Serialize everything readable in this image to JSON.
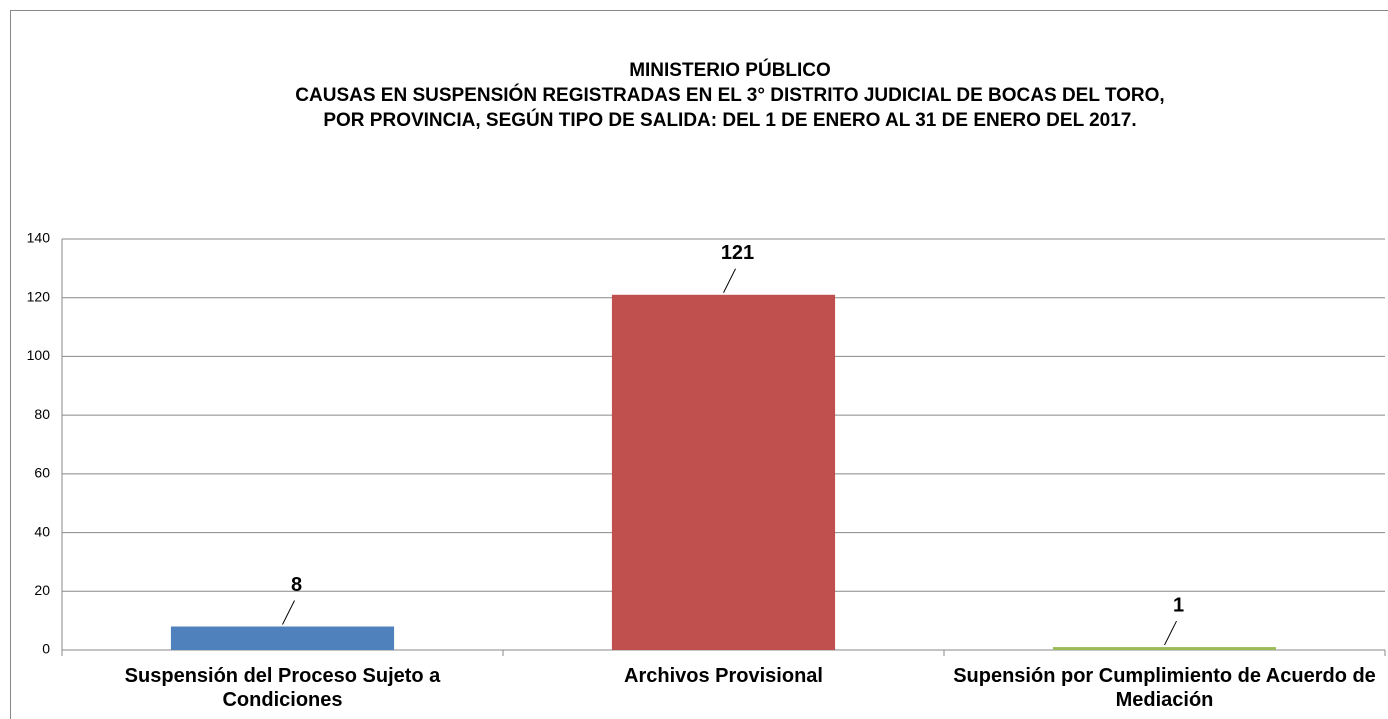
{
  "chart_data": {
    "type": "bar",
    "title": [
      "MINISTERIO PÚBLICO",
      "CAUSAS EN SUSPENSIÓN REGISTRADAS EN EL 3° DISTRITO JUDICIAL DE BOCAS DEL TORO,",
      "POR PROVINCIA, SEGÚN TIPO DE SALIDA: DEL 1 DE ENERO AL 31 DE ENERO DEL 2017."
    ],
    "categories": [
      "Suspensión del Proceso Sujeto a Condiciones",
      "Archivos Provisional",
      "Supensión por Cumplimiento de Acuerdo de Mediación"
    ],
    "values": [
      8,
      121,
      1
    ],
    "colors": [
      "#4f81bd",
      "#c0504d",
      "#9bbb59"
    ],
    "ylim": [
      0,
      140
    ],
    "yticks": [
      0,
      20,
      40,
      60,
      80,
      100,
      120,
      140
    ],
    "grid": true,
    "data_labels": true
  }
}
